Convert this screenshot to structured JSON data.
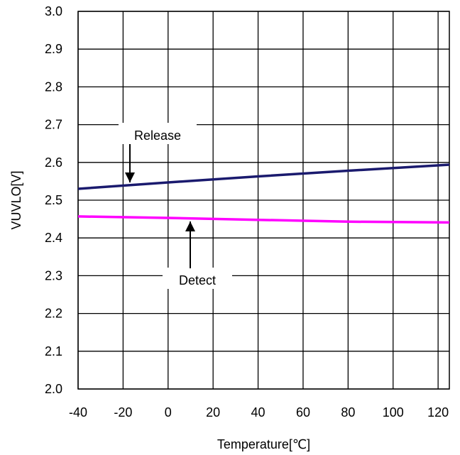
{
  "chart_data": {
    "type": "line",
    "xlabel": "Temperature[℃]",
    "ylabel": "VUVLO[V]",
    "xlim": [
      -40,
      125
    ],
    "ylim": [
      2.0,
      3.0
    ],
    "xticks": [
      -40,
      -20,
      0,
      20,
      40,
      60,
      80,
      100,
      120
    ],
    "yticks": [
      2.0,
      2.1,
      2.2,
      2.3,
      2.4,
      2.5,
      2.6,
      2.7,
      2.8,
      2.9,
      3.0
    ],
    "grid": true,
    "series": [
      {
        "name": "Release",
        "color": "#1a1a6e",
        "x": [
          -40,
          0,
          40,
          80,
          125
        ],
        "y": [
          2.53,
          2.547,
          2.563,
          2.578,
          2.594
        ]
      },
      {
        "name": "Detect",
        "color": "#ff00ff",
        "x": [
          -40,
          0,
          40,
          80,
          125
        ],
        "y": [
          2.457,
          2.453,
          2.448,
          2.443,
          2.441
        ]
      }
    ],
    "annotations": [
      {
        "text": "Release",
        "series": "Release"
      },
      {
        "text": "Detect",
        "series": "Detect"
      }
    ]
  }
}
